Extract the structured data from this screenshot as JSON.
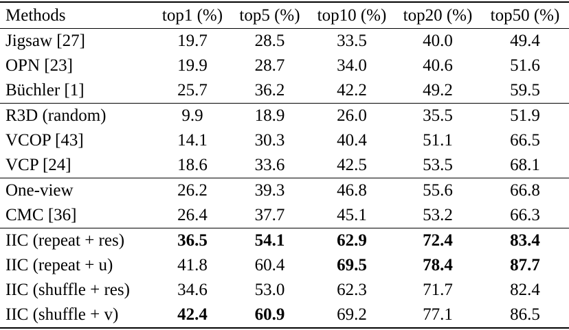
{
  "table": {
    "header": {
      "method_label": "Methods",
      "metric_labels": [
        "top1 (%)",
        "top5 (%)",
        "top10 (%)",
        "top20 (%)",
        "top50 (%)"
      ]
    },
    "rows": [
      {
        "method": "Jigsaw [27]",
        "values": [
          "19.7",
          "28.5",
          "33.5",
          "40.0",
          "49.4"
        ],
        "bold": [
          false,
          false,
          false,
          false,
          false
        ]
      },
      {
        "method": "OPN [23]",
        "values": [
          "19.9",
          "28.7",
          "34.0",
          "40.6",
          "51.6"
        ],
        "bold": [
          false,
          false,
          false,
          false,
          false
        ]
      },
      {
        "method": "Büchler [1]",
        "values": [
          "25.7",
          "36.2",
          "42.2",
          "49.2",
          "59.5"
        ],
        "bold": [
          false,
          false,
          false,
          false,
          false
        ]
      },
      {
        "method": "R3D (random)",
        "values": [
          "9.9",
          "18.9",
          "26.0",
          "35.5",
          "51.9"
        ],
        "bold": [
          false,
          false,
          false,
          false,
          false
        ]
      },
      {
        "method": "VCOP [43]",
        "values": [
          "14.1",
          "30.3",
          "40.4",
          "51.1",
          "66.5"
        ],
        "bold": [
          false,
          false,
          false,
          false,
          false
        ]
      },
      {
        "method": "VCP [24]",
        "values": [
          "18.6",
          "33.6",
          "42.5",
          "53.5",
          "68.1"
        ],
        "bold": [
          false,
          false,
          false,
          false,
          false
        ]
      },
      {
        "method": "One-view",
        "values": [
          "26.2",
          "39.3",
          "46.8",
          "55.6",
          "66.8"
        ],
        "bold": [
          false,
          false,
          false,
          false,
          false
        ]
      },
      {
        "method": "CMC [36]",
        "values": [
          "26.4",
          "37.7",
          "45.1",
          "53.2",
          "66.3"
        ],
        "bold": [
          false,
          false,
          false,
          false,
          false
        ]
      },
      {
        "method": "IIC (repeat + res)",
        "values": [
          "36.5",
          "54.1",
          "62.9",
          "72.4",
          "83.4"
        ],
        "bold": [
          true,
          true,
          true,
          true,
          true
        ]
      },
      {
        "method": "IIC (repeat + u)",
        "values": [
          "41.8",
          "60.4",
          "69.5",
          "78.4",
          "87.7"
        ],
        "bold": [
          false,
          false,
          true,
          true,
          true
        ]
      },
      {
        "method": "IIC (shuffle + res)",
        "values": [
          "34.6",
          "53.0",
          "62.3",
          "71.7",
          "82.4"
        ],
        "bold": [
          false,
          false,
          false,
          false,
          false
        ]
      },
      {
        "method": "IIC (shuffle + v)",
        "values": [
          "42.4",
          "60.9",
          "69.2",
          "77.1",
          "86.5"
        ],
        "bold": [
          true,
          true,
          false,
          false,
          false
        ]
      }
    ]
  }
}
